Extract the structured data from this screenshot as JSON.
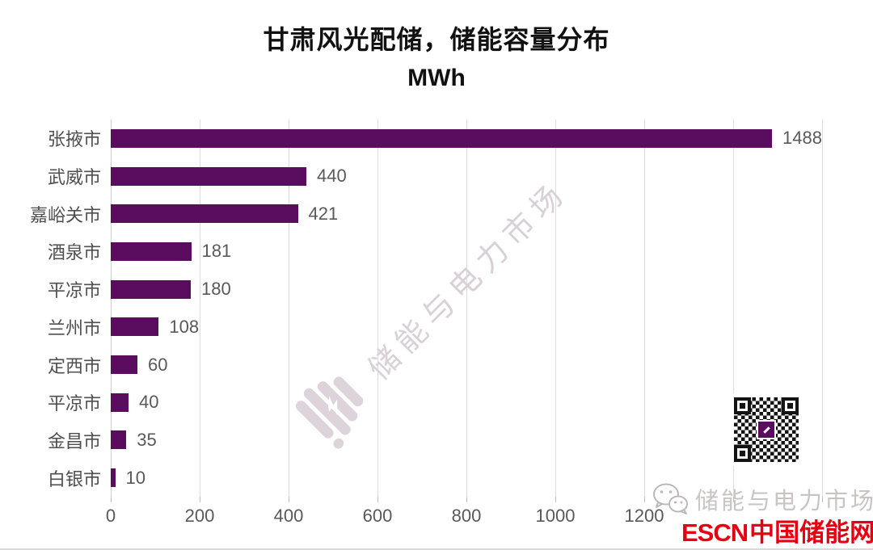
{
  "chart_data": {
    "type": "bar",
    "orientation": "horizontal",
    "title": "甘肃风光配储，储能容量分布",
    "subtitle_unit": "MWh",
    "categories": [
      "张掖市",
      "武威市",
      "嘉峪关市",
      "酒泉市",
      "平凉市",
      "兰州市",
      "定西市",
      "平凉市",
      "金昌市",
      "白银市"
    ],
    "values": [
      1488,
      440,
      421,
      181,
      180,
      108,
      60,
      40,
      35,
      10
    ],
    "xlim": [
      0,
      1600
    ],
    "x_tick_step": 200,
    "x_tick_labels": [
      "0",
      "200",
      "400",
      "600",
      "800",
      "1000",
      "1200"
    ],
    "grid": "vertical",
    "legend": "none",
    "bar_color": "#5A0C5E",
    "axis_text_color": "#595959"
  },
  "watermark": {
    "text": "储能与电力市场",
    "logo_icon": "battery-lightning-logo"
  },
  "footer": {
    "qr_icon": "qr-code",
    "wechat_icon": "wechat-icon",
    "wechat_text": "储能与电力市场",
    "brand_prefix": "ESCN",
    "brand_name": "中国储能网",
    "brand_color": "#e60012"
  }
}
